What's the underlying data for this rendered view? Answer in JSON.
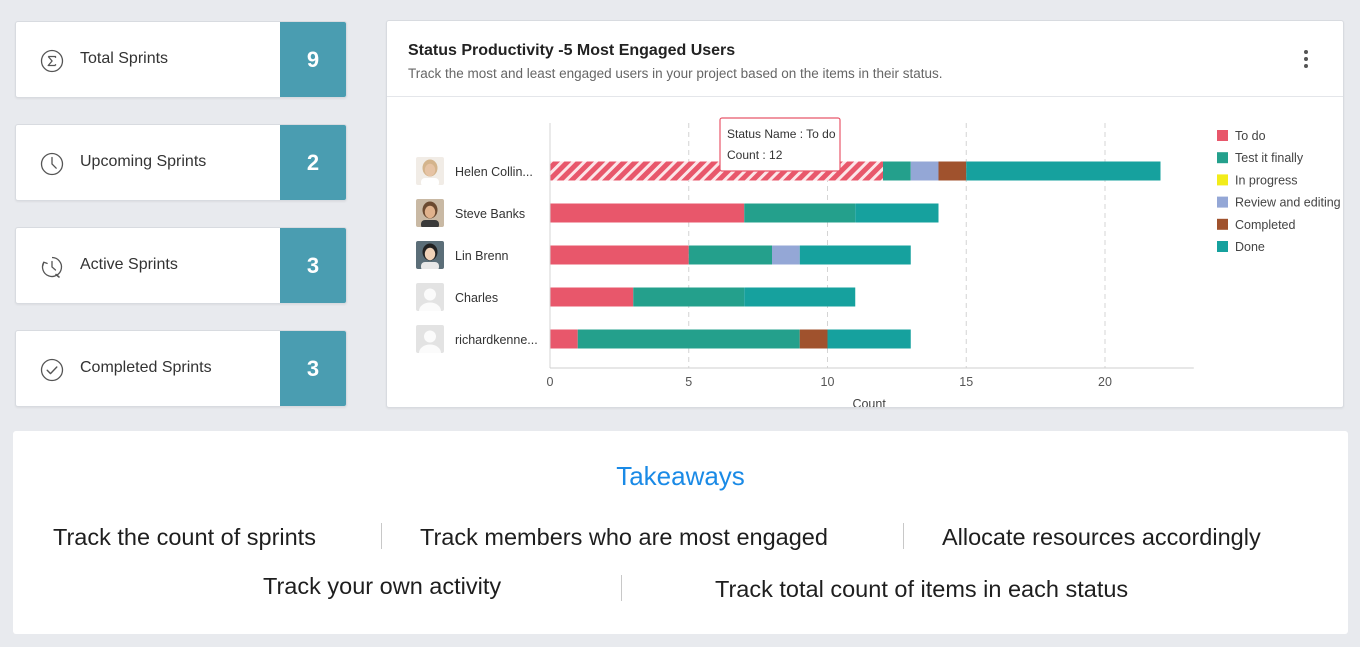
{
  "stats": [
    {
      "label": "Total Sprints",
      "count": "9",
      "icon": "sigma-icon"
    },
    {
      "label": "Upcoming Sprints",
      "count": "2",
      "icon": "clock-icon"
    },
    {
      "label": "Active Sprints",
      "count": "3",
      "icon": "timer-icon"
    },
    {
      "label": "Completed Sprints",
      "count": "3",
      "icon": "check-circle-icon"
    }
  ],
  "panel": {
    "title": "Status Productivity -5 Most Engaged Users",
    "subtitle": "Track the most and least engaged users in your project based on the items in their status.",
    "menu_icon": "kebab-menu-icon"
  },
  "tooltip": {
    "name_line": "Status Name : To do",
    "count_line": "Count : 12"
  },
  "chart_data": {
    "type": "bar",
    "orientation": "horizontal",
    "stacked": true,
    "categories": [
      "Helen Collin...",
      "Steve Banks",
      "Lin Brenn",
      "Charles",
      "richardkenne..."
    ],
    "series": [
      {
        "name": "To do",
        "color": "#e8576b",
        "values": [
          12,
          7,
          5,
          3,
          1
        ]
      },
      {
        "name": "Test it finally",
        "color": "#24a08c",
        "values": [
          1,
          4,
          3,
          4,
          8
        ]
      },
      {
        "name": "In progress",
        "color": "#f2ec1a",
        "values": [
          0,
          0,
          0,
          0,
          0
        ]
      },
      {
        "name": "Review and editing",
        "color": "#94a7d6",
        "values": [
          1,
          0,
          1,
          0,
          0
        ]
      },
      {
        "name": "Completed",
        "color": "#a0522d",
        "values": [
          1,
          0,
          0,
          0,
          1
        ]
      },
      {
        "name": "Done",
        "color": "#16a19e",
        "values": [
          7,
          3,
          4,
          4,
          3
        ]
      }
    ],
    "xlabel": "Count",
    "ylabel": "",
    "xlim": [
      0,
      23
    ],
    "xticks": [
      0,
      5,
      10,
      15,
      20
    ],
    "grid": "dashed-vertical",
    "legend": "right",
    "highlight": {
      "category": 0,
      "series": 0
    }
  },
  "takeaways": {
    "title": "Takeaways",
    "items": [
      "Track the count of sprints",
      "Track members who are most engaged",
      "Allocate resources accordingly",
      "Track your own activity",
      "Track total count of items in each status"
    ]
  }
}
